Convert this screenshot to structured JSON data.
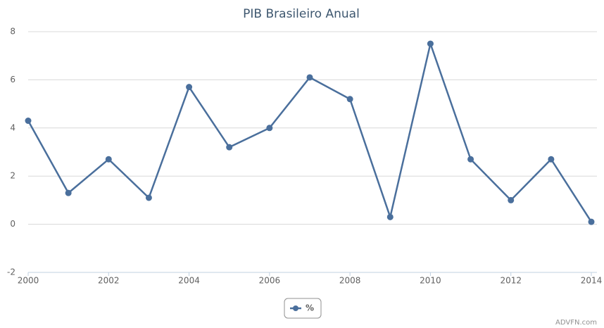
{
  "chart_data": {
    "type": "line",
    "title": "PIB Brasileiro Anual",
    "x": [
      2000,
      2001,
      2002,
      2003,
      2004,
      2005,
      2006,
      2007,
      2008,
      2009,
      2010,
      2011,
      2012,
      2013,
      2014
    ],
    "series": [
      {
        "name": "%",
        "color": "#4a6f9c",
        "values": [
          4.3,
          1.3,
          2.7,
          1.1,
          5.7,
          3.2,
          4.0,
          6.1,
          5.2,
          0.3,
          7.5,
          2.7,
          1.0,
          2.7,
          0.1
        ]
      }
    ],
    "xlim": [
      2000,
      2014
    ],
    "xticks": [
      2000,
      2002,
      2004,
      2006,
      2008,
      2010,
      2012,
      2014
    ],
    "ylim": [
      -2,
      8
    ],
    "yticks": [
      -2,
      0,
      2,
      4,
      6,
      8
    ],
    "grid": true,
    "legend": "bottom",
    "credit": "ADVFN.com"
  }
}
